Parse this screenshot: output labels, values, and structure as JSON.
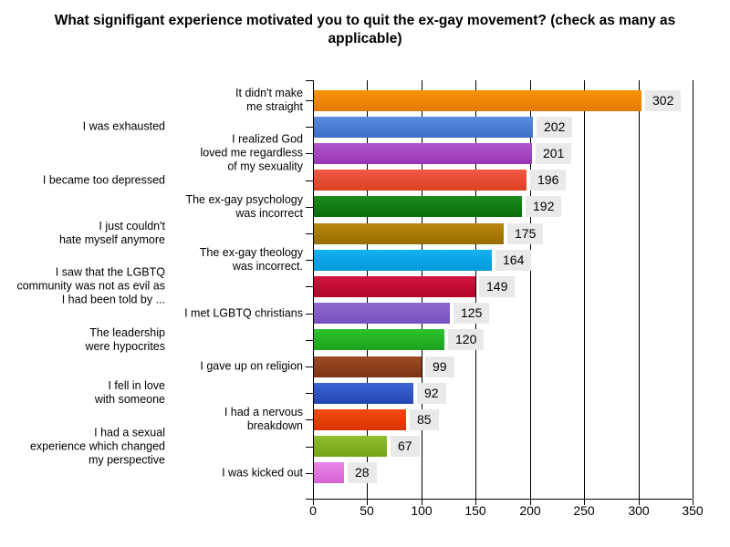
{
  "chart_data": {
    "type": "bar",
    "orientation": "horizontal",
    "title": "What signifigant experience motivated you to quit the ex-gay movement? (check as many as applicable)",
    "xlabel": "",
    "ylabel": "",
    "xlim": [
      0,
      350
    ],
    "x_ticks": [
      0,
      50,
      100,
      150,
      200,
      250,
      300,
      350
    ],
    "grid": true,
    "value_labels_shown": true,
    "background": "#FFFFFF",
    "axis_color": "#000000",
    "value_label_bg": "#E9E9E9",
    "categories": [
      "It didn't make me straight",
      "I was exhausted",
      "I realized God loved me regardless of my sexuality",
      "I became too depressed",
      "The ex-gay psychology was incorrect",
      "I just couldn't hate myself anymore",
      "The ex-gay theology was incorrect.",
      "I saw that the LGBTQ community was not as evil as I had been told by ...",
      "I met LGBTQ christians",
      "The leadership were hypocrites",
      "I gave up on religion",
      "I fell in love with someone",
      "I had a nervous breakdown",
      "I had a sexual experience which changed my perspective",
      "I was kicked out"
    ],
    "values": [
      302,
      202,
      201,
      196,
      192,
      175,
      164,
      149,
      125,
      120,
      99,
      92,
      85,
      67,
      28
    ],
    "bars": [
      {
        "label": "It didn't make\nme straight",
        "value": 302,
        "color_top": "#FB9207",
        "color_bottom": "#E37A00",
        "color_name": "orange"
      },
      {
        "label": "I was exhausted",
        "value": 202,
        "color_top": "#5A8CDF",
        "color_bottom": "#3E6EC8",
        "color_name": "cornflower-blue"
      },
      {
        "label": "I realized God\nloved me regardless\nof my sexuality",
        "value": 201,
        "color_top": "#B254CE",
        "color_bottom": "#9736B4",
        "color_name": "purple"
      },
      {
        "label": "I became too depressed",
        "value": 196,
        "color_top": "#F15B43",
        "color_bottom": "#DC4024",
        "color_name": "tomato"
      },
      {
        "label": "The ex-gay psychology\nwas incorrect",
        "value": 192,
        "color_top": "#1E8C1E",
        "color_bottom": "#0B6C0B",
        "color_name": "dark-green"
      },
      {
        "label": "I just couldn't\nhate myself anymore",
        "value": 175,
        "color_top": "#B8860B",
        "color_bottom": "#966D00",
        "color_name": "dark-goldenrod"
      },
      {
        "label": "The ex-gay theology\nwas incorrect.",
        "value": 164,
        "color_top": "#12B2F2",
        "color_bottom": "#009BDC",
        "color_name": "deep-sky-blue"
      },
      {
        "label": "I saw that the LGBTQ\ncommunity was not as evil as\nI had been told by ...",
        "value": 149,
        "color_top": "#D41440",
        "color_bottom": "#B20426",
        "color_name": "crimson"
      },
      {
        "label": "I met LGBTQ christians",
        "value": 125,
        "color_top": "#9168CE",
        "color_bottom": "#7750BC",
        "color_name": "medium-purple"
      },
      {
        "label": "The leadership\nwere hypocrites",
        "value": 120,
        "color_top": "#2EC22E",
        "color_bottom": "#1AA31A",
        "color_name": "lime-green"
      },
      {
        "label": "I gave up on religion",
        "value": 99,
        "color_top": "#9C4B26",
        "color_bottom": "#7C3414",
        "color_name": "sienna"
      },
      {
        "label": "I fell in love\nwith someone",
        "value": 92,
        "color_top": "#3C64D8",
        "color_bottom": "#2545B2",
        "color_name": "royal-blue"
      },
      {
        "label": "I had a nervous\nbreakdown",
        "value": 85,
        "color_top": "#F54A10",
        "color_bottom": "#D93300",
        "color_name": "orange-red"
      },
      {
        "label": "I had a sexual\nexperience which changed\nmy perspective",
        "value": 67,
        "color_top": "#8FBE2E",
        "color_bottom": "#74A418",
        "color_name": "yellow-green"
      },
      {
        "label": "I was kicked out",
        "value": 28,
        "color_top": "#E986E9",
        "color_bottom": "#D662D2",
        "color_name": "orchid"
      }
    ]
  }
}
